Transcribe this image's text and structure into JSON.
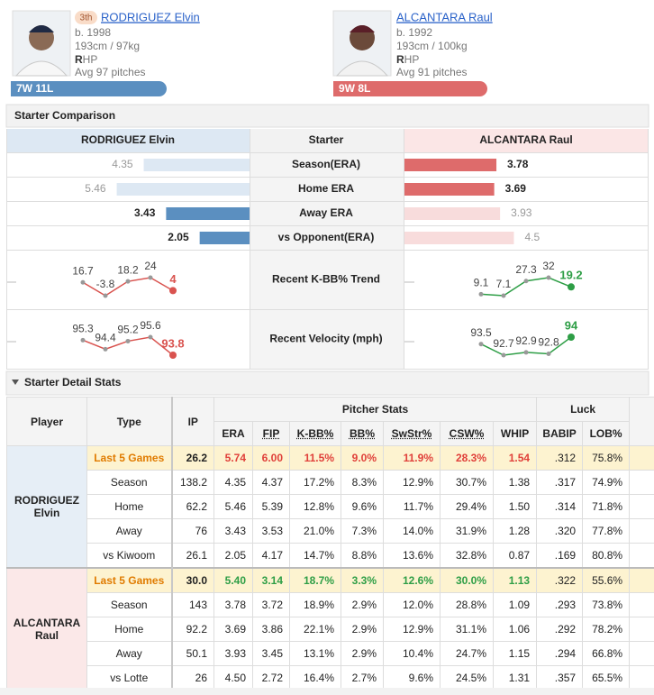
{
  "players": [
    {
      "rank": "3th",
      "name": "RODRIGUEZ Elvin",
      "born": "b. 1998",
      "body": "193cm / 97kg",
      "hand_bold": "R",
      "hand_rest": "HP",
      "pitches": "Avg 97 pitches",
      "record": "7W 11L"
    },
    {
      "name": "ALCANTARA Raul",
      "born": "b. 1992",
      "body": "193cm / 100kg",
      "hand_bold": "R",
      "hand_rest": "HP",
      "pitches": "Avg 91 pitches",
      "record": "9W 8L"
    }
  ],
  "comparison": {
    "title": "Starter Comparison",
    "header": [
      "RODRIGUEZ Elvin",
      "Starter",
      "ALCANTARA Raul"
    ],
    "rows": [
      {
        "label": "Season(ERA)",
        "left": 4.35,
        "right": 3.78
      },
      {
        "label": "Home ERA",
        "left": 5.46,
        "right": 3.69
      },
      {
        "label": "Away ERA",
        "left": 3.43,
        "right": 3.93
      },
      {
        "label": "vs Opponent(ERA)",
        "left": 2.05,
        "right": 4.5
      }
    ],
    "trends": [
      {
        "label": "Recent K-BB% Trend",
        "left": [
          16.7,
          -3.8,
          18.2,
          24,
          4
        ],
        "right": [
          9.1,
          7.1,
          27.3,
          32,
          19.2
        ]
      },
      {
        "label": "Recent Velocity (mph)",
        "left": [
          95.3,
          94.4,
          95.2,
          95.6,
          93.8
        ],
        "right": [
          93.5,
          92.7,
          92.9,
          92.8,
          94
        ]
      }
    ]
  },
  "detail": {
    "title": "Starter Detail Stats",
    "group_headers": [
      "Pitcher Stats",
      "Luck"
    ],
    "columns": [
      "Player",
      "Type",
      "IP",
      "ERA",
      "FIP",
      "K-BB%",
      "BB%",
      "SwStr%",
      "CSW%",
      "WHIP",
      "BABIP",
      "LOB%"
    ],
    "groups": [
      {
        "player": "RODRIGUEZ Elvin",
        "highlight_color": "#e0403a",
        "rows": [
          [
            "Last 5 Games",
            "26.2",
            "5.74",
            "6.00",
            "11.5%",
            "9.0%",
            "11.9%",
            "28.3%",
            "1.54",
            ".312",
            "75.8%"
          ],
          [
            "Season",
            "138.2",
            "4.35",
            "4.37",
            "17.2%",
            "8.3%",
            "12.9%",
            "30.7%",
            "1.38",
            ".317",
            "74.9%"
          ],
          [
            "Home",
            "62.2",
            "5.46",
            "5.39",
            "12.8%",
            "9.6%",
            "11.7%",
            "29.4%",
            "1.50",
            ".314",
            "71.8%"
          ],
          [
            "Away",
            "76",
            "3.43",
            "3.53",
            "21.0%",
            "7.3%",
            "14.0%",
            "31.9%",
            "1.28",
            ".320",
            "77.8%"
          ],
          [
            "vs Kiwoom",
            "26.1",
            "2.05",
            "4.17",
            "14.7%",
            "8.8%",
            "13.6%",
            "32.8%",
            "0.87",
            ".169",
            "80.8%"
          ]
        ]
      },
      {
        "player": "ALCANTARA Raul",
        "highlight_color": "#2e9e46",
        "rows": [
          [
            "Last 5 Games",
            "30.0",
            "5.40",
            "3.14",
            "18.7%",
            "3.3%",
            "12.6%",
            "30.0%",
            "1.13",
            ".322",
            "55.6%"
          ],
          [
            "Season",
            "143",
            "3.78",
            "3.72",
            "18.9%",
            "2.9%",
            "12.0%",
            "28.8%",
            "1.09",
            ".293",
            "73.8%"
          ],
          [
            "Home",
            "92.2",
            "3.69",
            "3.86",
            "22.1%",
            "2.9%",
            "12.9%",
            "31.1%",
            "1.06",
            ".292",
            "78.2%"
          ],
          [
            "Away",
            "50.1",
            "3.93",
            "3.45",
            "13.1%",
            "2.9%",
            "10.4%",
            "24.7%",
            "1.15",
            ".294",
            "66.8%"
          ],
          [
            "vs Lotte",
            "26",
            "4.50",
            "2.72",
            "16.4%",
            "2.7%",
            "9.6%",
            "24.5%",
            "1.31",
            ".357",
            "65.5%"
          ]
        ]
      }
    ]
  }
}
